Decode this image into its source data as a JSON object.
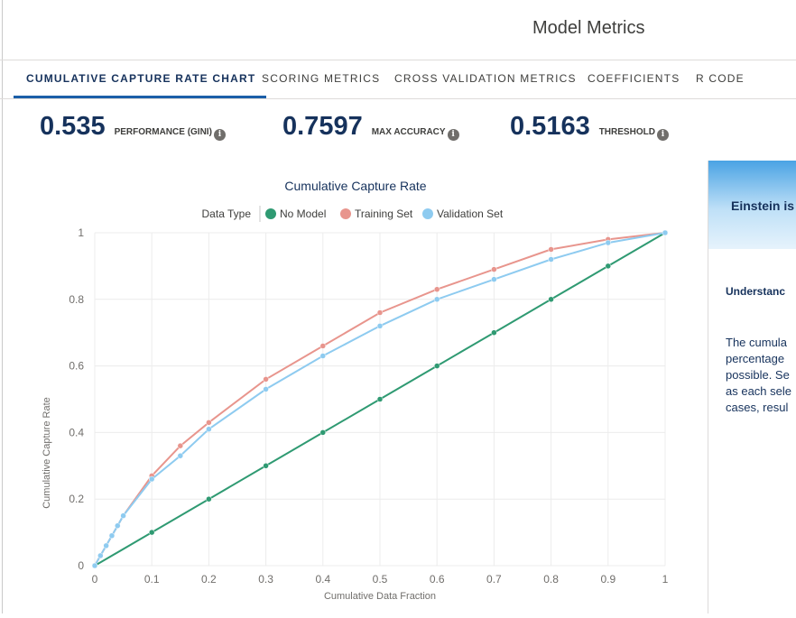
{
  "header": {
    "title": "Model Metrics"
  },
  "tabs": [
    {
      "label": "CUMULATIVE CAPTURE RATE CHART",
      "active": true
    },
    {
      "label": "SCORING METRICS",
      "active": false
    },
    {
      "label": "CROSS VALIDATION METRICS",
      "active": false
    },
    {
      "label": "COEFFICIENTS",
      "active": false
    },
    {
      "label": "R CODE",
      "active": false
    }
  ],
  "metrics": [
    {
      "value": "0.535",
      "label": "PERFORMANCE (GINI)",
      "icon": "info-icon"
    },
    {
      "value": "0.7597",
      "label": "MAX ACCURACY",
      "icon": "info-icon"
    },
    {
      "value": "0.5163",
      "label": "THRESHOLD",
      "icon": "info-icon"
    }
  ],
  "right_panel": {
    "banner_text": "Einstein is",
    "heading": "Understanc",
    "lines": [
      "The cumula",
      "percentage",
      "possible. Se",
      "as each sele",
      "cases, resul"
    ]
  },
  "colors": {
    "no_model": "#2f9a72",
    "training": "#e8958d",
    "validation": "#8ecbf0",
    "active_tab": "#1b5fa8",
    "text": "#16325c"
  },
  "chart_data": {
    "type": "line",
    "title": "Cumulative Capture Rate",
    "xlabel": "Cumulative Data Fraction",
    "ylabel": "Cumulative Capture Rate",
    "legend_title": "Data Type",
    "legend_position": "top",
    "xlim": [
      0,
      1
    ],
    "ylim": [
      0,
      1
    ],
    "x_ticks": [
      "0",
      "0.1",
      "0.2",
      "0.3",
      "0.4",
      "0.5",
      "0.6",
      "0.7",
      "0.8",
      "0.9",
      "1"
    ],
    "y_ticks": [
      "0",
      "0.2",
      "0.4",
      "0.6",
      "0.8",
      "1"
    ],
    "grid": true,
    "series": [
      {
        "name": "No Model",
        "color": "#2f9a72",
        "points": [
          [
            0,
            0
          ],
          [
            0.1,
            0.1
          ],
          [
            0.2,
            0.2
          ],
          [
            0.3,
            0.3
          ],
          [
            0.4,
            0.4
          ],
          [
            0.5,
            0.5
          ],
          [
            0.6,
            0.6
          ],
          [
            0.7,
            0.7
          ],
          [
            0.8,
            0.8
          ],
          [
            0.9,
            0.9
          ],
          [
            1,
            1
          ]
        ]
      },
      {
        "name": "Training Set",
        "color": "#e8958d",
        "points": [
          [
            0,
            0
          ],
          [
            0.01,
            0.03
          ],
          [
            0.02,
            0.06
          ],
          [
            0.03,
            0.09
          ],
          [
            0.04,
            0.12
          ],
          [
            0.05,
            0.15
          ],
          [
            0.1,
            0.27
          ],
          [
            0.15,
            0.36
          ],
          [
            0.2,
            0.43
          ],
          [
            0.3,
            0.56
          ],
          [
            0.4,
            0.66
          ],
          [
            0.5,
            0.76
          ],
          [
            0.6,
            0.83
          ],
          [
            0.7,
            0.89
          ],
          [
            0.8,
            0.95
          ],
          [
            0.9,
            0.98
          ],
          [
            1,
            1
          ]
        ]
      },
      {
        "name": "Validation Set",
        "color": "#8ecbf0",
        "points": [
          [
            0,
            0
          ],
          [
            0.01,
            0.03
          ],
          [
            0.02,
            0.06
          ],
          [
            0.03,
            0.09
          ],
          [
            0.04,
            0.12
          ],
          [
            0.05,
            0.15
          ],
          [
            0.1,
            0.26
          ],
          [
            0.15,
            0.33
          ],
          [
            0.2,
            0.41
          ],
          [
            0.3,
            0.53
          ],
          [
            0.4,
            0.63
          ],
          [
            0.5,
            0.72
          ],
          [
            0.6,
            0.8
          ],
          [
            0.7,
            0.86
          ],
          [
            0.8,
            0.92
          ],
          [
            0.9,
            0.97
          ],
          [
            1,
            1
          ]
        ]
      }
    ]
  }
}
